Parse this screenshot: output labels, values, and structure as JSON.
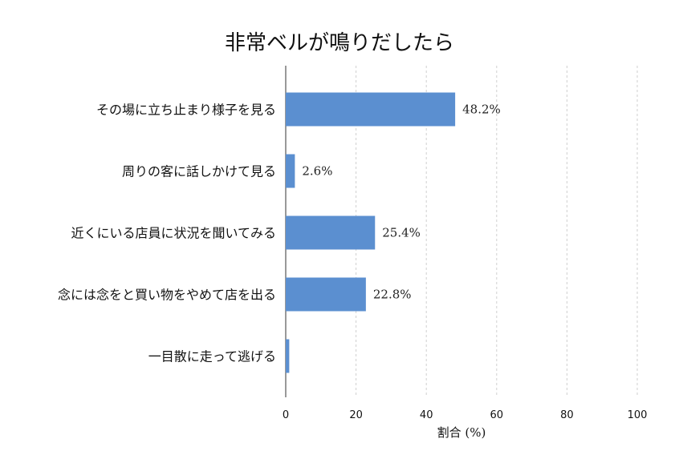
{
  "chart_data": {
    "type": "bar",
    "orientation": "horizontal",
    "title": "非常ベルが鳴りだしたら",
    "xlabel": "割合 (%)",
    "ylabel": "",
    "xlim": [
      0,
      100
    ],
    "xticks": [
      0,
      20,
      40,
      60,
      80,
      100
    ],
    "grid": true,
    "categories": [
      "その場に立ち止まり様子を見る",
      "周りの客に話しかけて見る",
      "近くにいる店員に状況を聞いてみる",
      "念には念をと買い物をやめて店を出る",
      "一目散に走って逃げる"
    ],
    "values": [
      48.2,
      2.6,
      25.4,
      22.8,
      1.0
    ],
    "value_labels": [
      "48.2%",
      "2.6%",
      "25.4%",
      "22.8%",
      ""
    ],
    "bar_color": "#5b8fd0"
  }
}
